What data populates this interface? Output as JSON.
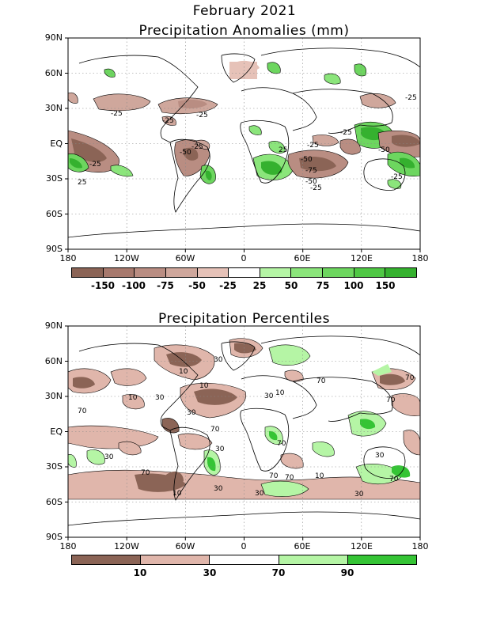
{
  "figure": {
    "title": "February 2021"
  },
  "axes": {
    "lat_labels": [
      "90N",
      "60N",
      "30N",
      "EQ",
      "30S",
      "60S",
      "90S"
    ],
    "lon_labels": [
      "180",
      "120W",
      "60W",
      "0",
      "60E",
      "120E",
      "180"
    ]
  },
  "anomaly": {
    "title": "Precipitation Anomalies (mm)",
    "colorbar_colors": [
      "#8b6456",
      "#a7796d",
      "#b98d82",
      "#cfa79c",
      "#e6c2b8",
      "#ffffff",
      "#b5f5a5",
      "#8be57b",
      "#6dd65f",
      "#4fc744",
      "#35b12f"
    ],
    "colorbar_labels": [
      "-150",
      "-100",
      "-75",
      "-50",
      "-25",
      "25",
      "50",
      "75",
      "100",
      "150"
    ],
    "contour_labels": [
      "-25",
      "-25",
      "-25",
      "-25",
      "-50",
      "-25",
      "25",
      "-25",
      "-25",
      "-50",
      "-75",
      "-50",
      "-25",
      "-25",
      "-50",
      "-25",
      "25"
    ]
  },
  "percentile": {
    "title": "Precipitation Percentiles",
    "colorbar_colors": [
      "#8b6456",
      "#e0b6ab",
      "#ffffff",
      "#b5f5a5",
      "#35c435"
    ],
    "colorbar_labels": [
      "10",
      "30",
      "70",
      "90"
    ],
    "contour_labels": [
      "30",
      "10",
      "10",
      "70",
      "10",
      "30",
      "70",
      "30",
      "10",
      "70",
      "30",
      "70",
      "70",
      "30",
      "70",
      "70",
      "30",
      "70",
      "10",
      "30",
      "30",
      "30",
      "30",
      "70",
      "10",
      "70"
    ]
  }
}
